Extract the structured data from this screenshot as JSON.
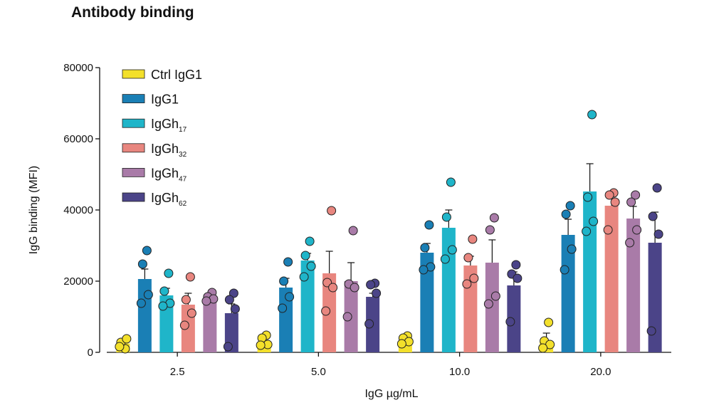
{
  "chart_data": {
    "type": "bar",
    "title": "Antibody binding",
    "x_label": "IgG µg/mL",
    "y_label": "IgG binding (MFI)",
    "categories": [
      "2.5",
      "5.0",
      "10.0",
      "20.0"
    ],
    "ylim": [
      0,
      80000
    ],
    "yticks": [
      0,
      20000,
      40000,
      60000,
      80000
    ],
    "legend": "upper-left",
    "series": [
      {
        "name": "Ctrl IgG1",
        "color": "#f3e02b",
        "values": [
          2500,
          3000,
          3000,
          3000
        ],
        "errors": [
          800,
          700,
          600,
          2400
        ],
        "points": [
          [
            1000,
            2800,
            3800,
            1600
          ],
          [
            4800,
            4000,
            2200,
            2000
          ],
          [
            4600,
            4000,
            3000,
            2400
          ],
          [
            8400,
            3200,
            2200,
            1200
          ]
        ]
      },
      {
        "name": "IgG1",
        "color": "#1a7fb5",
        "values": [
          20600,
          18200,
          28000,
          33000
        ],
        "errors": [
          2800,
          2600,
          2600,
          4400
        ],
        "points": [
          [
            28600,
            24800,
            16200,
            13800
          ],
          [
            25400,
            20000,
            15600,
            12400
          ],
          [
            35800,
            29400,
            24000,
            23200
          ],
          [
            41200,
            38800,
            29000,
            23200
          ]
        ]
      },
      {
        "name": "IgGh",
        "subscript": "17",
        "color": "#1fb5c9",
        "values": [
          16000,
          25800,
          35000,
          45200
        ],
        "errors": [
          2000,
          2000,
          5000,
          7800
        ],
        "points": [
          [
            22200,
            17200,
            13800,
            13000
          ],
          [
            31200,
            27200,
            24200,
            21200
          ],
          [
            47800,
            38000,
            28800,
            26200
          ],
          [
            66800,
            43600,
            36800,
            34000
          ]
        ]
      },
      {
        "name": "IgGh",
        "subscript": "32",
        "color": "#e8867f",
        "values": [
          13400,
          22200,
          24400,
          41200
        ],
        "errors": [
          3200,
          6200,
          2600,
          2000
        ],
        "points": [
          [
            21200,
            14800,
            11000,
            7600
          ],
          [
            39800,
            19600,
            18200,
            11600
          ],
          [
            31800,
            26600,
            20800,
            19200
          ],
          [
            44800,
            44200,
            42200,
            34400
          ]
        ]
      },
      {
        "name": "IgGh",
        "subscript": "47",
        "color": "#a97ba8",
        "values": [
          15200,
          20000,
          25200,
          37600
        ],
        "errors": [
          1400,
          5200,
          6400,
          3400
        ],
        "points": [
          [
            16800,
            15600,
            15000,
            14400
          ],
          [
            34200,
            19200,
            18200,
            10000
          ],
          [
            37800,
            34400,
            15800,
            13600
          ],
          [
            44200,
            42200,
            34400,
            30800
          ]
        ]
      },
      {
        "name": "IgGh",
        "subscript": "62",
        "color": "#4b4488",
        "values": [
          11000,
          15600,
          18800,
          30800
        ],
        "errors": [
          2600,
          1000,
          3800,
          8600
        ],
        "points": [
          [
            16600,
            14800,
            12200,
            1600
          ],
          [
            19400,
            19000,
            16600,
            8000
          ],
          [
            24600,
            22000,
            20800,
            8600
          ],
          [
            46200,
            38200,
            33200,
            6000
          ]
        ]
      }
    ]
  }
}
